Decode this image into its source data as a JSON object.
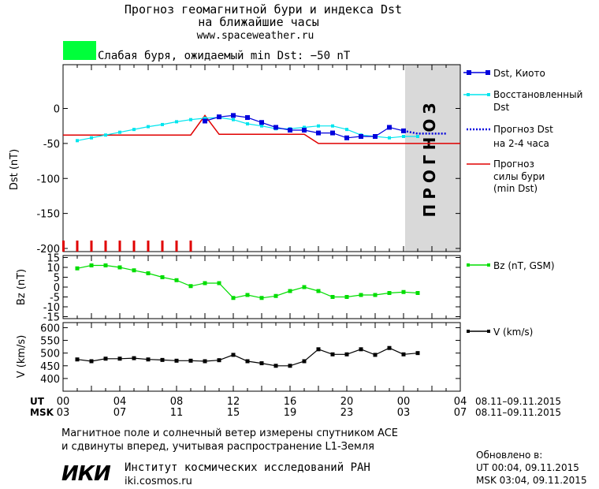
{
  "header": {
    "title_line1": "Прогноз геомагнитной бури и индекса Dst",
    "title_line2": "на ближайшие часы",
    "site": "www.spaceweather.ru",
    "storm_label": "Слабая буря, ожидаемый min Dst: −50 nT",
    "storm_color": "#00ff3a"
  },
  "forecast_zone_label": "ПРОГНОЗ",
  "colors": {
    "dst": "#0000dd",
    "restored": "#00e5ee",
    "forecast": "#0000dd",
    "storm": "#e00000",
    "bz": "#00dd00",
    "v": "#000000",
    "forecast_bg": "#d9d9d9"
  },
  "time_axis": {
    "ut_label": "UT",
    "msk_label": "MSK",
    "ut_ticks": [
      "00",
      "04",
      "08",
      "12",
      "16",
      "20",
      "00",
      "04"
    ],
    "msk_ticks": [
      "03",
      "07",
      "11",
      "15",
      "19",
      "23",
      "03",
      "07"
    ],
    "ut_range": "08.11–09.11.2015",
    "msk_range": "08.11–09.11.2015"
  },
  "chart_data": [
    {
      "type": "line",
      "ylabel": "Dst (nT)",
      "ylim": [
        -200,
        40
      ],
      "yticks": [
        "0",
        "-50",
        "-100",
        "-150",
        "-200"
      ],
      "xlim_hours": [
        0,
        28
      ],
      "series": [
        {
          "name": "Dst, Киото",
          "x": [
            10,
            11,
            12,
            13,
            14,
            15,
            16,
            17,
            18,
            19,
            20,
            21,
            22,
            23,
            24
          ],
          "y": [
            -18,
            -12,
            -10,
            -13,
            -20,
            -27,
            -31,
            -31,
            -35,
            -35,
            -42,
            -40,
            -40,
            -27,
            -32
          ]
        },
        {
          "name": "Восстановленный Dst",
          "x": [
            1,
            2,
            3,
            4,
            5,
            6,
            7,
            8,
            9,
            10,
            11,
            12,
            13,
            14,
            15,
            16,
            17,
            18,
            19,
            20,
            21,
            22,
            23,
            24,
            25
          ],
          "y": [
            -46,
            -42,
            -38,
            -34,
            -30,
            -26,
            -23,
            -19,
            -16,
            -14,
            -13,
            -16,
            -22,
            -25,
            -29,
            -29,
            -27,
            -25,
            -25,
            -30,
            -38,
            -40,
            -42,
            -40,
            -40
          ]
        },
        {
          "name": "Прогноз Dst на 2-4 часа",
          "x": [
            24,
            25,
            26,
            27
          ],
          "y": [
            -32,
            -36,
            -36,
            -36
          ]
        },
        {
          "name": "Прогноз силы бури (min Dst)",
          "x": [
            0,
            9,
            10,
            11,
            17,
            18,
            28
          ],
          "y": [
            -38,
            -38,
            -10,
            -37,
            -37,
            -50,
            -50
          ]
        }
      ],
      "forecast_from_hour": 24,
      "storm_markers_x": [
        1,
        2,
        3,
        4,
        5,
        6,
        7,
        8,
        9
      ]
    },
    {
      "type": "line",
      "ylabel": "Bz (nT)",
      "ylim": [
        -16,
        16
      ],
      "yticks": [
        "15",
        "10",
        "5",
        "0",
        "-5",
        "-10",
        "-15"
      ],
      "series": [
        {
          "name": "Bz (nT, GSM)",
          "x": [
            1,
            2,
            3,
            4,
            5,
            6,
            7,
            8,
            9,
            10,
            11,
            12,
            13,
            14,
            15,
            16,
            17,
            18,
            19,
            20,
            21,
            22,
            23,
            24,
            25
          ],
          "y": [
            9.5,
            11,
            11,
            10,
            8.5,
            7,
            5,
            3.5,
            0.5,
            2,
            2,
            -5.5,
            -4,
            -5.5,
            -4.5,
            -2,
            0,
            -2,
            -5,
            -5,
            -4,
            -4,
            -3,
            -2.5,
            -3
          ]
        }
      ]
    },
    {
      "type": "line",
      "ylabel": "V (km/s)",
      "ylim": [
        350,
        620
      ],
      "yticks": [
        "600",
        "550",
        "500",
        "450",
        "400"
      ],
      "series": [
        {
          "name": "V (km/s)",
          "x": [
            1,
            2,
            3,
            4,
            5,
            6,
            7,
            8,
            9,
            10,
            11,
            12,
            13,
            14,
            15,
            16,
            17,
            18,
            19,
            20,
            21,
            22,
            23,
            24,
            25
          ],
          "y": [
            475,
            468,
            478,
            478,
            480,
            475,
            473,
            470,
            470,
            468,
            472,
            493,
            468,
            460,
            450,
            450,
            468,
            515,
            495,
            495,
            515,
            493,
            520,
            495,
            500
          ]
        }
      ]
    }
  ],
  "footer": {
    "note_line1": "Магнитное поле и солнечный ветер измерены спутником ACE",
    "note_line2": "и сдвинуты вперед, учитывая распространение L1-Земля",
    "logo_text": "ИКИ",
    "institute": "Институт космических исследований РАН",
    "institute_site": "iki.cosmos.ru",
    "updated_label": "Обновлено в:",
    "updated_ut": "UT   00:04, 09.11.2015",
    "updated_msk": "MSK 03:04, 09.11.2015"
  }
}
